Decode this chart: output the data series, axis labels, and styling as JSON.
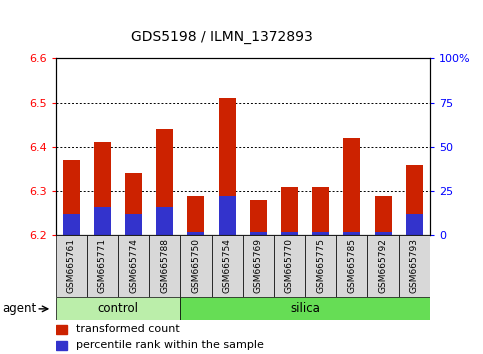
{
  "title": "GDS5198 / ILMN_1372893",
  "samples": [
    "GSM665761",
    "GSM665771",
    "GSM665774",
    "GSM665788",
    "GSM665750",
    "GSM665754",
    "GSM665769",
    "GSM665770",
    "GSM665775",
    "GSM665785",
    "GSM665792",
    "GSM665793"
  ],
  "groups": [
    "control",
    "control",
    "control",
    "control",
    "silica",
    "silica",
    "silica",
    "silica",
    "silica",
    "silica",
    "silica",
    "silica"
  ],
  "transformed_count": [
    6.37,
    6.41,
    6.34,
    6.44,
    6.29,
    6.51,
    6.28,
    6.31,
    6.31,
    6.42,
    6.29,
    6.36
  ],
  "percentile_rank_pct": [
    12,
    16,
    12,
    16,
    2,
    22,
    2,
    2,
    2,
    2,
    2,
    12
  ],
  "ymin": 6.2,
  "ymax": 6.6,
  "y_ticks": [
    6.2,
    6.3,
    6.4,
    6.5,
    6.6
  ],
  "y2min": 0,
  "y2max": 100,
  "y2_ticks": [
    0,
    25,
    50,
    75,
    100
  ],
  "y2_tick_labels": [
    "0",
    "25",
    "50",
    "75",
    "100%"
  ],
  "bar_color_red": "#cc2200",
  "bar_color_blue": "#3333cc",
  "control_bg": "#bbeeaa",
  "silica_bg": "#66dd55",
  "bar_width": 0.55,
  "legend_red": "transformed count",
  "legend_blue": "percentile rank within the sample"
}
